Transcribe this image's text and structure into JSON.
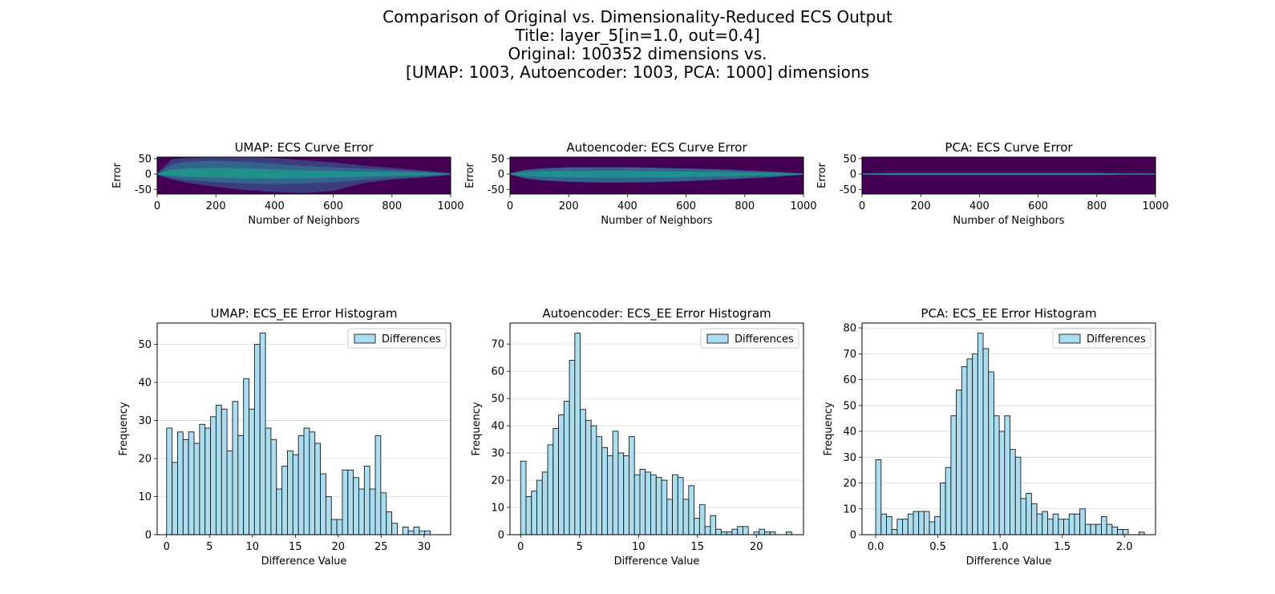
{
  "suptitle": {
    "lines": [
      "Comparison of Original vs. Dimensionality-Reduced ECS Output",
      "Title: layer_5[in=1.0, out=0.4]",
      "Original: 100352 dimensions vs.",
      "[UMAP: 1003, Autoencoder: 1003, PCA: 1000] dimensions"
    ]
  },
  "colors": {
    "heat_bg": "#440154",
    "heat_core": "#21918c",
    "heat_mid": "#31688e",
    "heat_edge": "#3b528b",
    "bar_fill": "#a9ddef",
    "bar_edge": "#1a1a1a",
    "grid": "#d9d9d9"
  },
  "chart_data": [
    {
      "type": "heatmap",
      "title": "UMAP: ECS Curve Error",
      "xlabel": "Number of Neighbors",
      "ylabel": "Error",
      "xlim": [
        0,
        1000
      ],
      "ylim": [
        -65,
        55
      ],
      "xticks": [
        0,
        200,
        400,
        600,
        800,
        1000
      ],
      "yticks": [
        50,
        0,
        -50
      ],
      "band": {
        "x": [
          0,
          50,
          100,
          200,
          300,
          400,
          500,
          600,
          700,
          800,
          900,
          1000
        ],
        "upper": [
          3,
          48,
          52,
          55,
          55,
          52,
          45,
          38,
          28,
          20,
          12,
          3
        ],
        "lower": [
          -3,
          -18,
          -28,
          -42,
          -52,
          -58,
          -62,
          -55,
          -30,
          -18,
          -12,
          -3
        ],
        "core_upper": [
          1,
          14,
          18,
          20,
          18,
          15,
          12,
          10,
          8,
          6,
          4,
          1
        ],
        "core_lower": [
          -1,
          -6,
          -9,
          -12,
          -14,
          -15,
          -14,
          -12,
          -9,
          -6,
          -4,
          -1
        ]
      }
    },
    {
      "type": "heatmap",
      "title": "Autoencoder: ECS Curve Error",
      "xlabel": "Number of Neighbors",
      "ylabel": "Error",
      "xlim": [
        0,
        1000
      ],
      "ylim": [
        -65,
        55
      ],
      "xticks": [
        0,
        200,
        400,
        600,
        800,
        1000
      ],
      "yticks": [
        50,
        0,
        -50
      ],
      "band": {
        "x": [
          0,
          50,
          100,
          200,
          300,
          400,
          500,
          600,
          700,
          800,
          900,
          1000
        ],
        "upper": [
          2,
          12,
          16,
          20,
          22,
          22,
          20,
          18,
          16,
          12,
          8,
          2
        ],
        "lower": [
          -2,
          -14,
          -20,
          -26,
          -28,
          -28,
          -27,
          -24,
          -20,
          -15,
          -10,
          -2
        ],
        "core_upper": [
          1,
          6,
          8,
          10,
          10,
          10,
          9,
          8,
          7,
          5,
          3,
          1
        ],
        "core_lower": [
          -1,
          -6,
          -9,
          -11,
          -12,
          -12,
          -11,
          -10,
          -8,
          -6,
          -4,
          -1
        ]
      }
    },
    {
      "type": "heatmap",
      "title": "PCA: ECS Curve Error",
      "xlabel": "Number of Neighbors",
      "ylabel": "Error",
      "xlim": [
        0,
        1000
      ],
      "ylim": [
        -65,
        55
      ],
      "xticks": [
        0,
        200,
        400,
        600,
        800,
        1000
      ],
      "yticks": [
        50,
        0,
        -50
      ],
      "band": {
        "x": [
          0,
          100,
          200,
          300,
          400,
          500,
          600,
          700,
          800,
          900,
          1000
        ],
        "upper": [
          1,
          3,
          3,
          3,
          3,
          3,
          3,
          3,
          3,
          2,
          1
        ],
        "lower": [
          -1,
          -3,
          -3,
          -3,
          -3,
          -3,
          -3,
          -3,
          -3,
          -2,
          -1
        ],
        "core_upper": [
          1,
          1.5,
          1.5,
          1.5,
          1.5,
          1.5,
          1.5,
          1.5,
          1.5,
          1,
          1
        ],
        "core_lower": [
          -1,
          -1.5,
          -1.5,
          -1.5,
          -1.5,
          -1.5,
          -1.5,
          -1.5,
          -1.5,
          -1,
          -1
        ]
      }
    },
    {
      "type": "bar",
      "title": "UMAP: ECS_EE Error Histogram",
      "xlabel": "Difference Value",
      "ylabel": "Frequency",
      "legend": "Differences",
      "legend_position": "top-right",
      "xlim": [
        -1.1,
        33.1
      ],
      "ylim": [
        0,
        55.6
      ],
      "xticks": [
        0,
        5,
        10,
        15,
        20,
        25,
        30
      ],
      "yticks": [
        0,
        10,
        20,
        30,
        40,
        50
      ],
      "bin_start": 0,
      "bin_width": 0.64,
      "values": [
        28,
        19,
        27,
        25,
        27,
        24,
        29,
        28,
        31,
        34,
        33,
        22,
        35,
        26,
        41,
        33,
        50,
        53,
        28,
        25,
        12,
        18,
        22,
        21,
        26,
        28,
        27,
        24,
        16,
        10,
        4,
        4,
        17,
        17,
        15,
        12,
        18,
        12,
        26,
        11,
        6,
        3,
        0,
        2,
        1,
        2,
        1,
        1
      ]
    },
    {
      "type": "bar",
      "title": "Autoencoder: ECS_EE Error Histogram",
      "xlabel": "Difference Value",
      "ylabel": "Frequency",
      "legend": "Differences",
      "legend_position": "top-right",
      "xlim": [
        -0.9,
        24.0
      ],
      "ylim": [
        0,
        77.7
      ],
      "xticks": [
        0,
        5,
        10,
        15,
        20
      ],
      "yticks": [
        0,
        10,
        20,
        30,
        40,
        50,
        60,
        70
      ],
      "bin_start": 0,
      "bin_width": 0.46,
      "values": [
        27,
        14,
        16,
        20,
        23,
        33,
        39,
        44,
        49,
        64,
        74,
        46,
        42,
        40,
        36,
        32,
        29,
        38,
        30,
        29,
        36,
        22,
        24,
        23,
        22,
        21,
        20,
        13,
        22,
        21,
        13,
        18,
        6,
        11,
        3,
        7,
        2,
        1,
        1,
        2,
        3,
        3,
        0,
        1,
        2,
        1,
        1,
        0,
        0,
        1
      ]
    },
    {
      "type": "bar",
      "title": "PCA: ECS_EE Error Histogram",
      "xlabel": "Difference Value",
      "ylabel": "Frequency",
      "legend": "Differences",
      "legend_position": "top-right",
      "xlim": [
        -0.11,
        2.25
      ],
      "ylim": [
        0,
        81.9
      ],
      "xticks": [
        "0.0",
        "0.5",
        "1.0",
        "1.5",
        "2.0"
      ],
      "ytick_values": [
        0,
        10,
        20,
        30,
        40,
        50,
        60,
        70,
        80
      ],
      "bin_start": 0,
      "bin_width": 0.0432,
      "values": [
        29,
        8,
        7,
        2,
        6,
        6,
        8,
        9,
        9,
        9,
        5,
        7,
        20,
        26,
        46,
        56,
        65,
        68,
        70,
        78,
        72,
        63,
        46,
        40,
        46,
        33,
        30,
        14,
        16,
        12,
        8,
        9,
        6,
        8,
        6,
        6,
        8,
        8,
        10,
        4,
        4,
        4,
        7,
        4,
        3,
        2,
        2,
        0,
        0,
        1
      ]
    }
  ]
}
